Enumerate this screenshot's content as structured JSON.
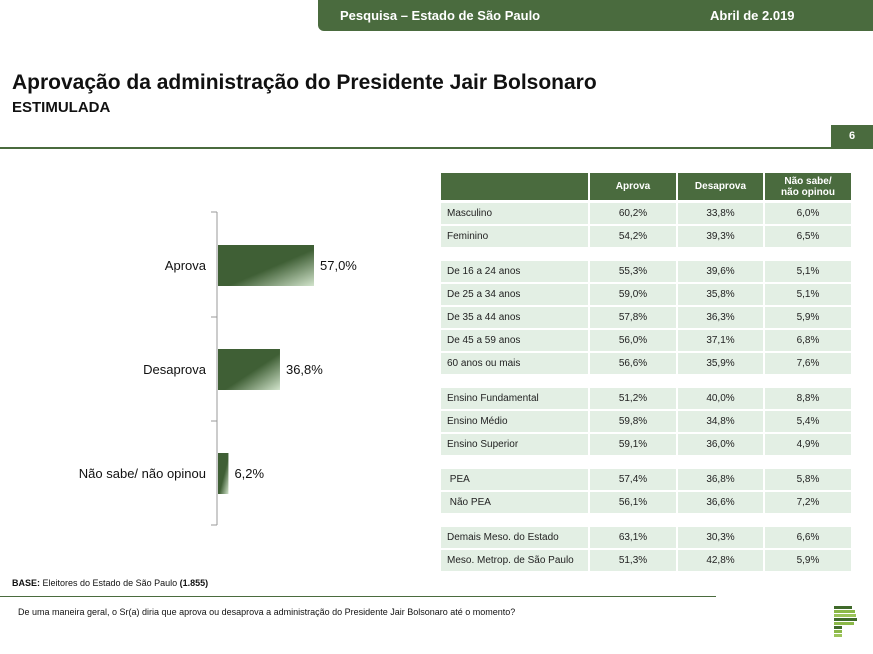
{
  "header": {
    "survey": "Pesquisa – Estado de São Paulo",
    "date": "Abril de 2.019"
  },
  "title": "Aprovação da administração do Presidente Jair Bolsonaro",
  "subtitle": "ESTIMULADA",
  "page_number": "6",
  "chart_data": {
    "type": "bar",
    "orientation": "horizontal",
    "categories": [
      "Aprova",
      "Desaprova",
      "Não sabe/ não opinou"
    ],
    "values": [
      57.0,
      36.8,
      6.2
    ],
    "labels": [
      "57,0%",
      "36,8%",
      "6,2%"
    ],
    "colors": [
      "#3f5f35",
      "#c8dcc4"
    ]
  },
  "table": {
    "headers": [
      "",
      "Aprova",
      "Desaprova",
      "Não sabe/\nnão opinou"
    ],
    "groups": [
      [
        [
          "Masculino",
          "60,2%",
          "33,8%",
          "6,0%"
        ],
        [
          "Feminino",
          "54,2%",
          "39,3%",
          "6,5%"
        ]
      ],
      [
        [
          "De 16 a 24 anos",
          "55,3%",
          "39,6%",
          "5,1%"
        ],
        [
          "De 25 a 34 anos",
          "59,0%",
          "35,8%",
          "5,1%"
        ],
        [
          "De 35 a 44 anos",
          "57,8%",
          "36,3%",
          "5,9%"
        ],
        [
          "De 45 a 59 anos",
          "56,0%",
          "37,1%",
          "6,8%"
        ],
        [
          "60 anos ou mais",
          "56,6%",
          "35,9%",
          "7,6%"
        ]
      ],
      [
        [
          "Ensino Fundamental",
          "51,2%",
          "40,0%",
          "8,8%"
        ],
        [
          "Ensino Médio",
          "59,8%",
          "34,8%",
          "5,4%"
        ],
        [
          "Ensino Superior",
          "59,1%",
          "36,0%",
          "4,9%"
        ]
      ],
      [
        [
          " PEA",
          "57,4%",
          "36,8%",
          "5,8%"
        ],
        [
          " Não PEA",
          "56,1%",
          "36,6%",
          "7,2%"
        ]
      ],
      [
        [
          "Demais Meso. do Estado",
          "63,1%",
          "30,3%",
          "6,6%"
        ],
        [
          "Meso. Metrop. de São Paulo",
          "51,3%",
          "42,8%",
          "5,9%"
        ]
      ]
    ]
  },
  "base": {
    "label": "BASE:",
    "text": " Eleitores do Estado de São Paulo ",
    "count": "(1.855)"
  },
  "question": "De uma maneira geral, o Sr(a) diria que aprova ou desaprova a administração do Presidente Jair Bolsonaro até o momento?"
}
